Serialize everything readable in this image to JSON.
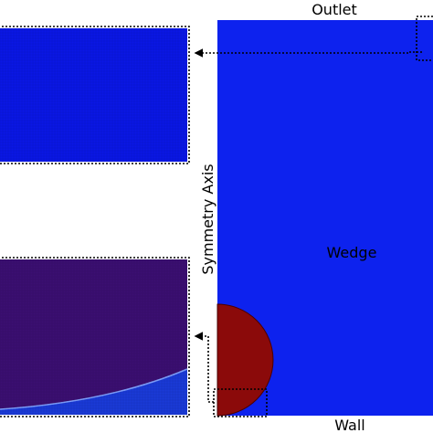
{
  "labels": {
    "outlet": "Outlet",
    "symmetry_axis": "Symmetry Axis",
    "wedge": "Wedge",
    "wall": "Wall"
  }
}
